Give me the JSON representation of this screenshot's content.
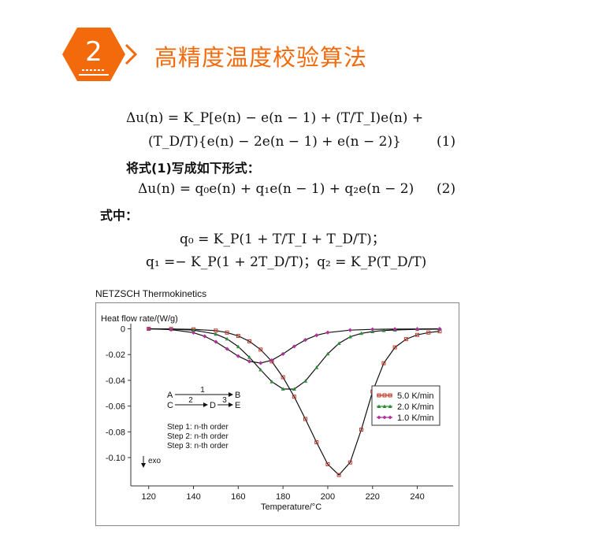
{
  "header": {
    "step_number": "2",
    "title": "高精度温度校验算法",
    "accent_color": "#f36a0c"
  },
  "formulas": {
    "line1": "Δu(n) = K_P[e(n) − e(n − 1) + (T/T_I)e(n) +",
    "line2": "(T_D/T){e(n) − 2e(n − 1) + e(n − 2)}",
    "eq1_number": "(1)",
    "line3": "将式(1)写成如下形式：",
    "line4": "Δu(n) = q₀e(n) + q₁e(n − 1) + q₂e(n − 2)",
    "eq2_number": "(2)",
    "line5": "式中：",
    "line6": "q₀ = K_P(1 + T/T_I + T_D/T)；",
    "line7": "q₁ =− K_P(1 + 2T_D/T)；q₂ = K_P(T_D/T)"
  },
  "chart_source_label": "NETZSCH Thermokinetics",
  "chart_data": {
    "type": "line",
    "title": "",
    "ylabel": "Heat flow rate/(W/g)",
    "xlabel": "Temperature/°C",
    "xlim": [
      112,
      256
    ],
    "ylim": [
      -0.122,
      0.004
    ],
    "x_ticks": [
      120,
      140,
      160,
      180,
      200,
      220,
      240
    ],
    "y_ticks": [
      0,
      -0.02,
      -0.04,
      -0.06,
      -0.08,
      -0.1
    ],
    "y_tick_labels": [
      "0",
      "-0.02",
      "-0.04",
      "-0.06",
      "-0.08",
      "-0.10"
    ],
    "legend_position": "right",
    "exo_label": "exo",
    "series": [
      {
        "name": "5.0 K/min",
        "color": "#c0392b",
        "marker": "square",
        "x": [
          120,
          130,
          140,
          150,
          155,
          160,
          165,
          170,
          175,
          180,
          185,
          190,
          195,
          200,
          205,
          210,
          215,
          220,
          225,
          230,
          235,
          240,
          245,
          250
        ],
        "y": [
          0,
          -0.0001,
          -0.0004,
          -0.0014,
          -0.0029,
          -0.0055,
          -0.0097,
          -0.0161,
          -0.0253,
          -0.0376,
          -0.0527,
          -0.07,
          -0.0881,
          -0.1052,
          -0.1135,
          -0.1038,
          -0.0783,
          -0.0487,
          -0.0267,
          -0.0144,
          -0.008,
          -0.0047,
          -0.0029,
          -0.0019
        ]
      },
      {
        "name": "2.0 K/min",
        "color": "#2e8b3a",
        "marker": "triangle",
        "x": [
          120,
          130,
          140,
          150,
          155,
          160,
          165,
          170,
          175,
          180,
          185,
          190,
          195,
          200,
          205,
          210,
          215,
          220,
          225,
          230,
          240,
          250
        ],
        "y": [
          0,
          -0.0002,
          -0.001,
          -0.0041,
          -0.0078,
          -0.0138,
          -0.0221,
          -0.0318,
          -0.041,
          -0.0467,
          -0.0468,
          -0.0406,
          -0.03,
          -0.0194,
          -0.0113,
          -0.0062,
          -0.0035,
          -0.0021,
          -0.0013,
          -0.0009,
          -0.0004,
          -0.0002
        ]
      },
      {
        "name": "1.0 K/min",
        "color": "#b0309a",
        "marker": "diamond",
        "x": [
          120,
          130,
          140,
          145,
          150,
          155,
          160,
          165,
          170,
          175,
          180,
          185,
          190,
          195,
          200,
          210,
          220,
          230,
          240,
          250
        ],
        "y": [
          0,
          -0.0006,
          -0.003,
          -0.0058,
          -0.0101,
          -0.0156,
          -0.0212,
          -0.0253,
          -0.0266,
          -0.0244,
          -0.0195,
          -0.0137,
          -0.0086,
          -0.005,
          -0.0029,
          -0.001,
          -0.0004,
          -0.0002,
          -0.0001,
          0
        ]
      }
    ],
    "annotations": {
      "row1_start": "A",
      "row1_step": "1",
      "row1_end": "B",
      "row2_start": "C",
      "row2_step1": "2",
      "row2_mid": "D",
      "row2_step2": "3",
      "row2_end": "E",
      "steps": [
        "Step 1: n-th order",
        "Step 2: n-th order",
        "Step 3: n-th order"
      ]
    }
  }
}
